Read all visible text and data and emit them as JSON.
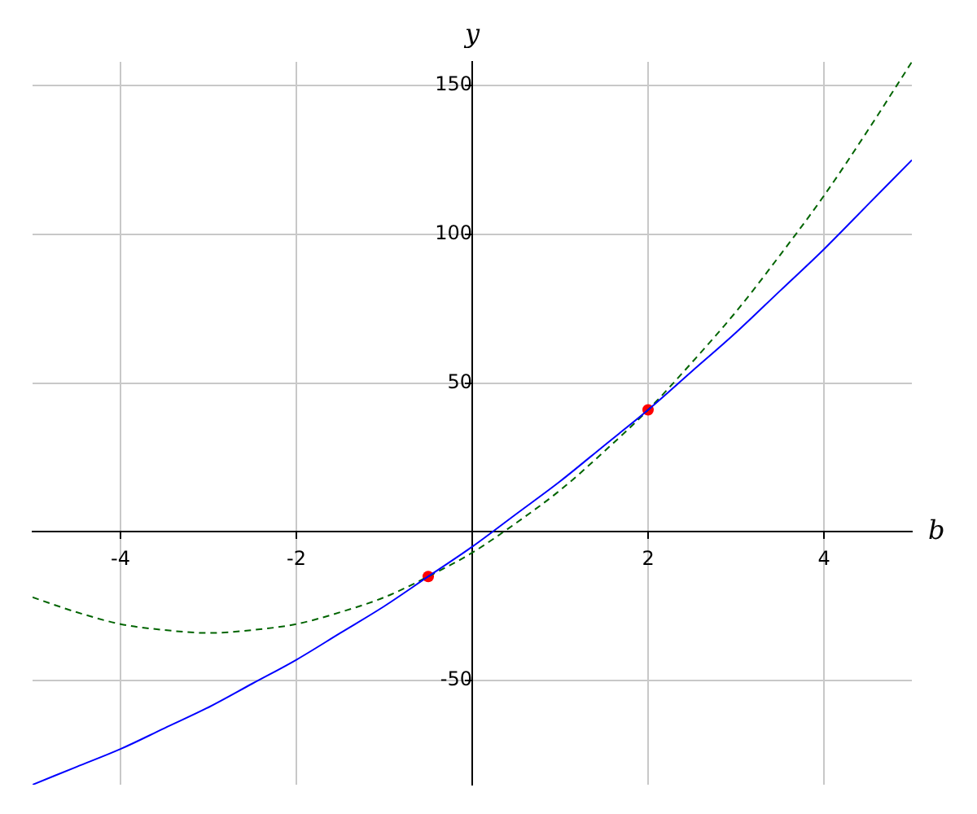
{
  "chart_data": {
    "type": "line",
    "xlabel": "b",
    "ylabel": "y",
    "x": [
      -5,
      -4.5,
      -4,
      -3.5,
      -3,
      -2.5,
      -2,
      -1.5,
      -1,
      -0.5,
      0,
      0.5,
      1,
      1.5,
      2,
      2.5,
      3,
      3.5,
      4,
      4.5,
      5
    ],
    "series": [
      {
        "color": "#0000ff",
        "line_style": "solid",
        "marker": "none",
        "values": [
          -85,
          -79,
          -73,
          -66,
          -59,
          -51,
          -43,
          -34,
          -25,
          -15,
          -5,
          6,
          17,
          29,
          41,
          54,
          67,
          81,
          95,
          110,
          125
        ]
      },
      {
        "color": "#006400",
        "line_style": "dashed",
        "marker": "none",
        "values": [
          -22,
          -27,
          -31,
          -33,
          -34,
          -33,
          -31,
          -27,
          -22,
          -15,
          -7,
          3,
          14,
          27,
          41,
          57,
          74,
          93,
          113,
          135,
          158
        ]
      },
      {
        "type": "scatter",
        "color": "#ff0000",
        "marker": "circle",
        "x": [
          -0.5,
          2
        ],
        "values": [
          -15,
          41
        ]
      }
    ],
    "xlim": [
      -5,
      5
    ],
    "ylim": [
      -85,
      158
    ],
    "xticks": [
      -4,
      -2,
      2,
      4
    ],
    "yticks": [
      -50,
      50,
      100,
      150
    ],
    "grid": true,
    "legend": false
  }
}
